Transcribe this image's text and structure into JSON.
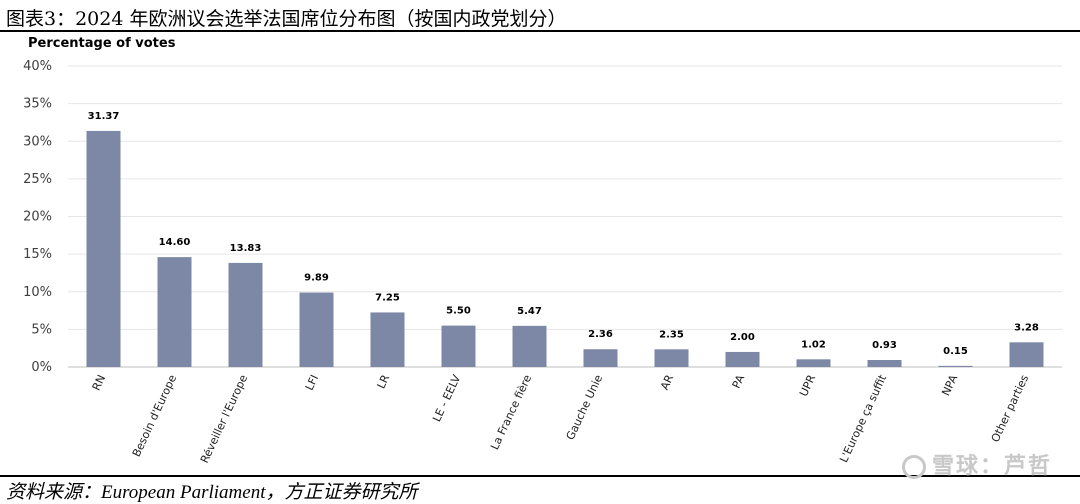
{
  "header": {
    "title": "图表3：2024 年欧洲议会选举法国席位分布图（按国内政党划分）"
  },
  "footer": {
    "source": "资料来源：European Parliament，方正证券研究所",
    "watermark": "雪球：芦哲"
  },
  "chart_data": {
    "type": "bar",
    "ylabel": "Percentage of votes",
    "ylim": [
      0,
      40
    ],
    "yticks": [
      0,
      5,
      10,
      15,
      20,
      25,
      30,
      35,
      40
    ],
    "ytick_labels": [
      "0%",
      "5%",
      "10%",
      "15%",
      "20%",
      "25%",
      "30%",
      "35%",
      "40%"
    ],
    "categories": [
      "RN",
      "Besoin d'Europe",
      "Réveiller l'Europe",
      "LFI",
      "LR",
      "LE - EELV",
      "La France fière",
      "Gauche Unie",
      "AR",
      "PA",
      "UPR",
      "L'Europe ça suffit",
      "NPA",
      "Other parties"
    ],
    "values": [
      31.37,
      14.6,
      13.83,
      9.89,
      7.25,
      5.5,
      5.47,
      2.36,
      2.35,
      2.0,
      1.02,
      0.93,
      0.15,
      3.28
    ],
    "value_labels": [
      "31.37",
      "14.60",
      "13.83",
      "9.89",
      "7.25",
      "5.50",
      "5.47",
      "2.36",
      "2.35",
      "2.00",
      "1.02",
      "0.93",
      "0.15",
      "3.28"
    ],
    "bar_color": "#7d87a6",
    "grid": true
  }
}
